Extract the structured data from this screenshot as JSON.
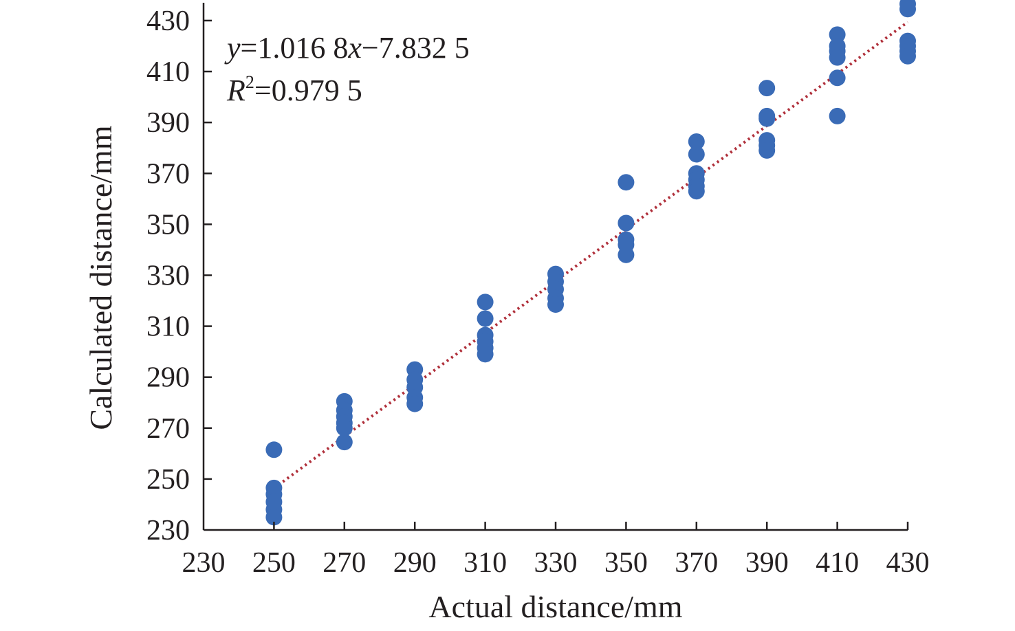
{
  "chart_data": {
    "type": "scatter",
    "xlabel": "Actual distance/mm",
    "ylabel": "Calculated distance/mm",
    "xlim": [
      230,
      430
    ],
    "ylim": [
      230,
      437
    ],
    "x_ticks": [
      "230",
      "250",
      "270",
      "290",
      "310",
      "330",
      "350",
      "370",
      "390",
      "410",
      "430"
    ],
    "y_ticks": [
      "230",
      "250",
      "270",
      "290",
      "310",
      "330",
      "350",
      "370",
      "390",
      "410",
      "430"
    ],
    "grid": false,
    "colors": {
      "points": "#3a6bb6",
      "trendline": "#b0303b",
      "axes": "#231f20"
    },
    "equation": {
      "y_var": "y",
      "eq_part1": "=1.016 8",
      "x_var": "x",
      "eq_part2": "−7.832 5",
      "r_var": "R",
      "r_sup": "2",
      "r_value": "=0.979 5"
    },
    "trendline": {
      "slope": 1.0168,
      "intercept": -7.8325,
      "x_range": [
        250,
        430
      ],
      "style": "dotted"
    },
    "series": [
      {
        "points": [
          [
            250,
            261.5
          ],
          [
            250,
            246.5
          ],
          [
            250,
            244
          ],
          [
            250,
            241
          ],
          [
            250,
            238
          ],
          [
            250,
            235
          ],
          [
            270,
            280.5
          ],
          [
            270,
            277
          ],
          [
            270,
            274.5
          ],
          [
            270,
            272
          ],
          [
            270,
            270
          ],
          [
            270,
            264.5
          ],
          [
            290,
            293
          ],
          [
            290,
            289
          ],
          [
            290,
            286
          ],
          [
            290,
            282
          ],
          [
            290,
            279.5
          ],
          [
            310,
            319.5
          ],
          [
            310,
            313
          ],
          [
            310,
            306.5
          ],
          [
            310,
            304
          ],
          [
            310,
            301.5
          ],
          [
            310,
            299
          ],
          [
            330,
            330.5
          ],
          [
            330,
            327.5
          ],
          [
            330,
            324.5
          ],
          [
            330,
            321
          ],
          [
            330,
            318.5
          ],
          [
            350,
            366.5
          ],
          [
            350,
            350.5
          ],
          [
            350,
            344
          ],
          [
            350,
            342
          ],
          [
            350,
            338
          ],
          [
            370,
            382.5
          ],
          [
            370,
            377.5
          ],
          [
            370,
            370
          ],
          [
            370,
            367.5
          ],
          [
            370,
            365
          ],
          [
            370,
            363
          ],
          [
            390,
            403.5
          ],
          [
            390,
            392.5
          ],
          [
            390,
            391.5
          ],
          [
            390,
            383
          ],
          [
            390,
            381
          ],
          [
            390,
            379
          ],
          [
            410,
            424.5
          ],
          [
            410,
            420
          ],
          [
            410,
            418
          ],
          [
            410,
            415.5
          ],
          [
            410,
            407.5
          ],
          [
            410,
            392.5
          ],
          [
            430,
            436.5
          ],
          [
            430,
            434.5
          ],
          [
            430,
            422
          ],
          [
            430,
            420
          ],
          [
            430,
            418
          ],
          [
            430,
            416
          ]
        ]
      }
    ]
  }
}
